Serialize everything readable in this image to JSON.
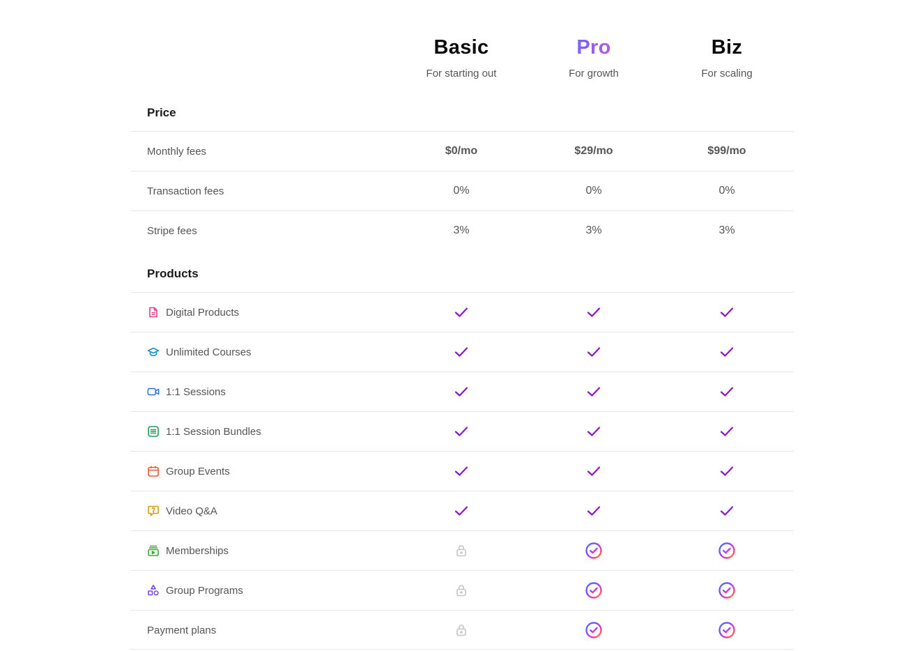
{
  "plans": [
    {
      "name": "Basic",
      "subtitle": "For starting out"
    },
    {
      "name": "Pro",
      "subtitle": "For growth"
    },
    {
      "name": "Biz",
      "subtitle": "For scaling"
    }
  ],
  "price": {
    "title": "Price",
    "rows": [
      {
        "label": "Monthly fees",
        "values": [
          "$0/mo",
          "$29/mo",
          "$99/mo"
        ]
      },
      {
        "label": "Transaction fees",
        "values": [
          "0%",
          "0%",
          "0%"
        ]
      },
      {
        "label": "Stripe fees",
        "values": [
          "3%",
          "3%",
          "3%"
        ]
      }
    ]
  },
  "products": {
    "title": "Products",
    "rows": [
      {
        "label": "Digital Products",
        "icon": "document-icon",
        "icon_color": "#e23d8c",
        "status": [
          "check",
          "check",
          "check"
        ]
      },
      {
        "label": "Unlimited Courses",
        "icon": "graduation-cap-icon",
        "icon_color": "#1c8fc9",
        "status": [
          "check",
          "check",
          "check"
        ]
      },
      {
        "label": "1:1 Sessions",
        "icon": "video-camera-icon",
        "icon_color": "#2a6fe8",
        "status": [
          "check",
          "check",
          "check"
        ]
      },
      {
        "label": "1:1 Session Bundles",
        "icon": "list-box-icon",
        "icon_color": "#1f9a5b",
        "status": [
          "check",
          "check",
          "check"
        ]
      },
      {
        "label": "Group Events",
        "icon": "calendar-icon",
        "icon_color": "#ef5a2a",
        "status": [
          "check",
          "check",
          "check"
        ]
      },
      {
        "label": "Video Q&A",
        "icon": "question-bubble-icon",
        "icon_color": "#d99a12",
        "status": [
          "check",
          "check",
          "check"
        ]
      },
      {
        "label": "Memberships",
        "icon": "membership-stack-icon",
        "icon_color": "#3fa935",
        "status": [
          "lock",
          "pro-check",
          "pro-check"
        ]
      },
      {
        "label": "Group Programs",
        "icon": "shapes-icon",
        "icon_color": "#7b4bf0",
        "status": [
          "lock",
          "pro-check",
          "pro-check"
        ]
      },
      {
        "label": "Payment plans",
        "icon": "",
        "icon_color": "",
        "status": [
          "lock",
          "pro-check",
          "pro-check"
        ]
      }
    ]
  },
  "colors": {
    "check": "#8b14c7",
    "lock": "#c4c4c4",
    "divider": "#e6e6e6"
  }
}
